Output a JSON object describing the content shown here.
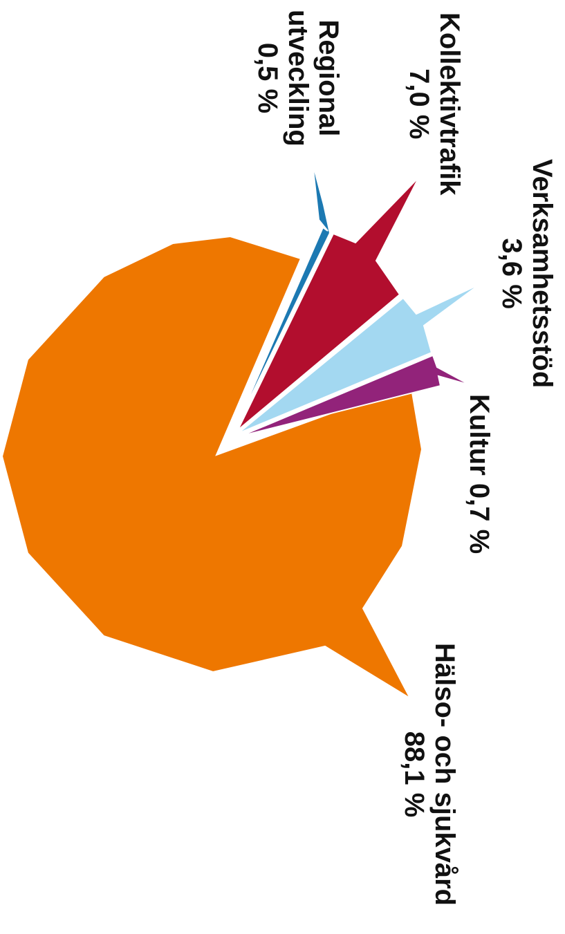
{
  "chart_data": {
    "type": "pie",
    "orientation": "rotated 90deg clockwise",
    "slices": [
      {
        "name": "Hälso- och sjukvård",
        "value": 88.1,
        "value_label": "88,1 %",
        "color": "#ee7700"
      },
      {
        "name": "Kultur",
        "value": 0.7,
        "value_label": "0,7 %",
        "color": "#92237a"
      },
      {
        "name": "Verksamhetsstöd",
        "value": 3.6,
        "value_label": "3,6 %",
        "color": "#a3d8f1"
      },
      {
        "name": "Kollektivtrafik",
        "value": 7.0,
        "value_label": "7,0 %",
        "color": "#b20e2e"
      },
      {
        "name": "Regional utveckling",
        "value": 0.5,
        "value_label": "0,5 %",
        "color": "#1c79b2"
      }
    ]
  },
  "labels": {
    "halso": {
      "line1": "Hälso- och sjukvård",
      "line2": "88,1 %"
    },
    "kultur": {
      "line1": "Kultur 0,7 %"
    },
    "verksamhet": {
      "line1": "Verksamhetsstöd",
      "line2": "3,6 %"
    },
    "kollektiv": {
      "line1": "Kollektivtrafik",
      "line2": "7,0 %"
    },
    "regional": {
      "line1": "Regional",
      "line2": "utveckling",
      "line3": "0,5 %"
    }
  }
}
